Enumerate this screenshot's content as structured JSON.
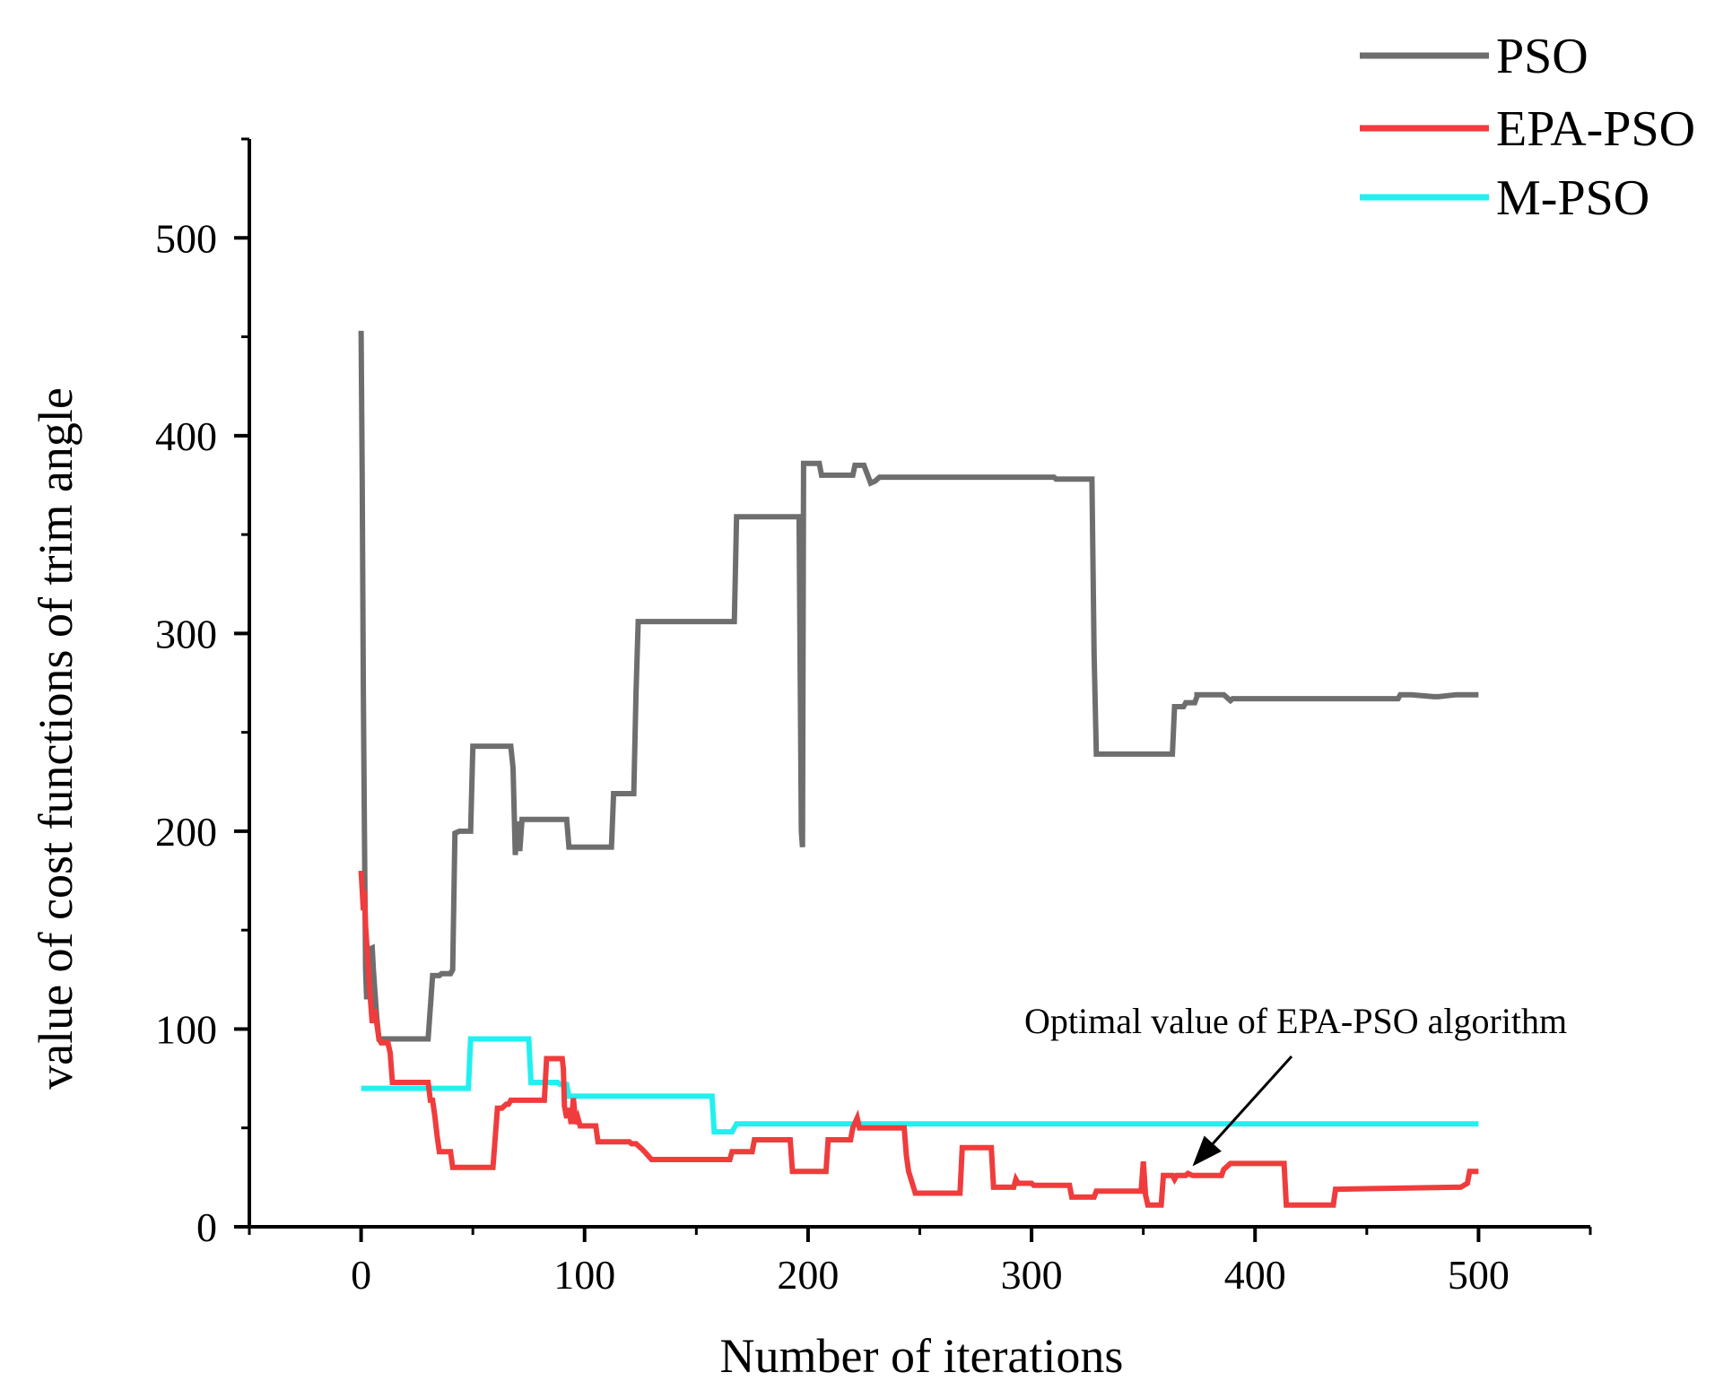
{
  "chart_data": {
    "type": "line",
    "title": "",
    "xlabel": "Number of iterations",
    "ylabel": "value of cost functions of trim angle",
    "xlim": [
      -50,
      550
    ],
    "ylim": [
      0,
      550
    ],
    "xticks": [
      0,
      100,
      200,
      300,
      400,
      500
    ],
    "yticks": [
      0,
      100,
      200,
      300,
      400,
      500
    ],
    "grid": false,
    "legend_position": "top-right",
    "annotation": {
      "text": "Optimal value of EPA-PSO algorithm",
      "points_to": [
        372,
        27
      ]
    },
    "series": [
      {
        "name": "PSO",
        "color": "#6e6e6e",
        "x": [
          0,
          0.5,
          1,
          1.5,
          2,
          2.5,
          3,
          5,
          5.5,
          7,
          8,
          30,
          32,
          35,
          36,
          40,
          41,
          42,
          44,
          49,
          50,
          67,
          68,
          69,
          70,
          71,
          72,
          92,
          93,
          112,
          113,
          122,
          123,
          124,
          167,
          168,
          196,
          197,
          197.5,
          198,
          205,
          206,
          220,
          221,
          225,
          227,
          228,
          230,
          231,
          232,
          310,
          311,
          327,
          328,
          329,
          330,
          363,
          364,
          368,
          369,
          373,
          374,
          374,
          385,
          386,
          387,
          388,
          389,
          390,
          464,
          465,
          470,
          480,
          482,
          490,
          500
        ],
        "y": [
          453,
          380,
          270,
          200,
          130,
          115,
          140,
          141,
          130,
          106,
          95,
          95,
          127,
          127,
          128,
          128,
          130,
          199,
          200,
          200,
          243,
          243,
          232,
          188,
          205,
          190,
          206,
          206,
          192,
          192,
          219,
          219,
          270,
          306,
          306,
          359,
          359,
          200,
          192,
          386,
          386,
          380,
          380,
          385,
          385,
          379,
          376,
          377,
          378,
          379,
          379,
          378,
          378,
          290,
          239,
          239,
          239,
          263,
          263,
          265,
          265,
          268,
          269,
          269,
          269,
          268,
          267,
          266,
          267,
          267,
          269,
          269,
          268,
          268,
          269,
          269
        ]
      },
      {
        "name": "EPA-PSO",
        "color": "#f03c3c",
        "x": [
          0,
          1,
          1.5,
          2,
          3,
          4,
          5,
          6,
          7,
          8,
          9,
          10,
          12,
          13,
          14,
          30,
          31,
          32,
          33,
          34,
          35,
          40,
          41,
          59,
          60,
          61,
          63,
          64,
          65,
          66,
          67,
          82,
          83,
          90,
          90.5,
          91,
          92,
          93,
          94,
          95,
          96,
          97,
          98,
          105,
          106,
          120,
          121,
          123,
          124,
          126,
          130,
          131,
          165,
          166,
          175,
          176,
          192,
          193,
          208,
          209,
          219,
          220,
          222,
          223,
          243,
          244,
          245,
          248,
          249,
          268,
          269,
          282,
          283,
          292,
          293,
          294,
          300,
          301,
          317,
          318,
          328,
          329,
          348,
          349,
          350,
          351,
          352,
          358,
          359,
          363,
          364,
          365,
          369,
          370,
          372,
          385,
          386,
          387,
          389,
          413,
          414,
          415,
          435,
          436,
          437,
          490,
          491,
          492,
          495,
          496,
          500
        ],
        "y": [
          180,
          160,
          170,
          152,
          135,
          118,
          103,
          110,
          103,
          95,
          93,
          93,
          93,
          88,
          73,
          73,
          64,
          64,
          56,
          46,
          38,
          38,
          30,
          30,
          45,
          60,
          60,
          61,
          62,
          62,
          64,
          64,
          85,
          85,
          80,
          61,
          55,
          60,
          52,
          65,
          52,
          55,
          51,
          51,
          43,
          43,
          42,
          42,
          41,
          39,
          34,
          34,
          34,
          38,
          38,
          44,
          44,
          28,
          28,
          44,
          44,
          50,
          55,
          50,
          50,
          36,
          28,
          17,
          17,
          17,
          40,
          40,
          20,
          20,
          24,
          22,
          22,
          21,
          21,
          15,
          15,
          18,
          18,
          18,
          33,
          16,
          11,
          11,
          26,
          26,
          24,
          26,
          26,
          27,
          26,
          26,
          29,
          30,
          32,
          32,
          11,
          11,
          11,
          19,
          19,
          20,
          20,
          20,
          22,
          28,
          28
        ]
      },
      {
        "name": "M-PSO",
        "color": "#22f0f0",
        "x": [
          0,
          48,
          49,
          75,
          76,
          88,
          89,
          92,
          93,
          157,
          158,
          166,
          167,
          168,
          500
        ],
        "y": [
          70,
          70,
          95,
          95,
          73,
          73,
          72,
          72,
          66,
          66,
          48,
          48,
          50,
          52,
          52
        ]
      }
    ]
  }
}
